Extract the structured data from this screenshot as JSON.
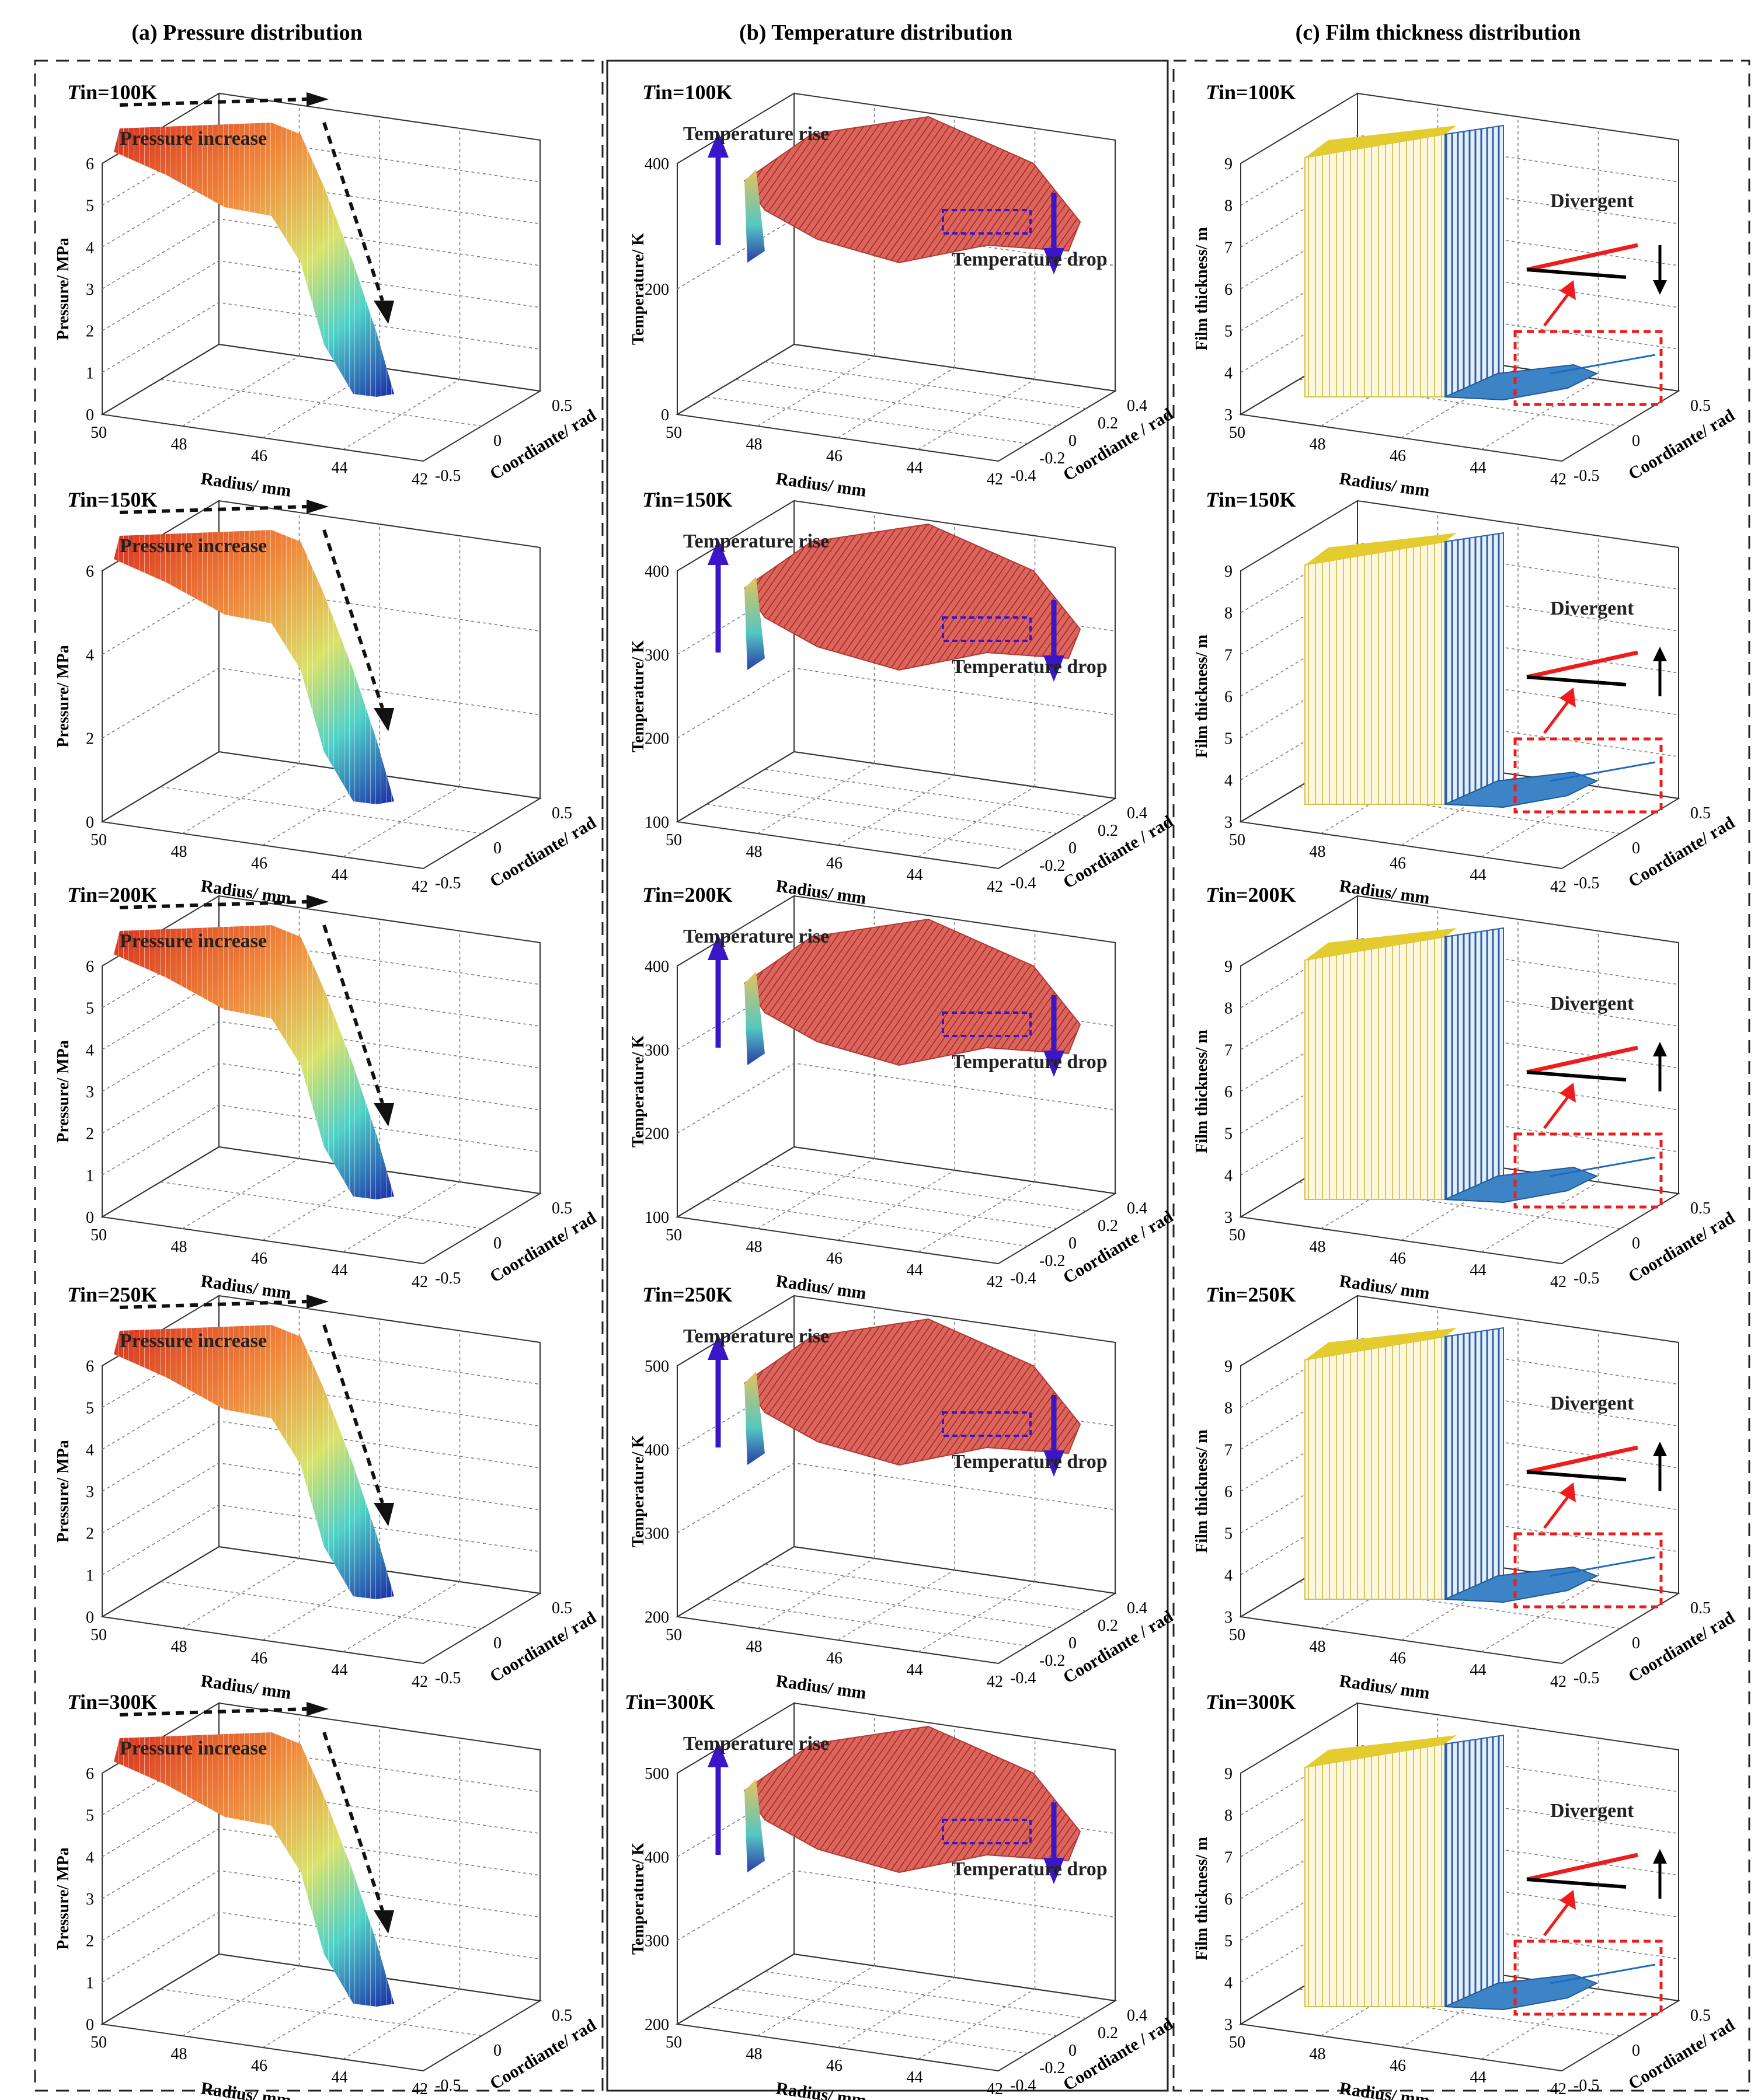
{
  "figure": {
    "column_titles": [
      "(a) Pressure distribution",
      "(b) Temperature distribution",
      "(c) Film thickness distribution"
    ],
    "row_label_prefix": "T",
    "row_label_rest": [
      "in=100K",
      "in=150K",
      "in=200K",
      "in=250K",
      "in=300K"
    ],
    "colors": {
      "frame": "#222222",
      "arrow_dashed": "#111111",
      "arrow_purple": "#3b16c8",
      "box_purple": "#3b16c8",
      "box_red": "#ee1c1c",
      "line_red": "#ee1c1c",
      "line_black": "#000000",
      "surface_red": "#c84848",
      "film_yellow": "#e8d44a",
      "film_blue": "#2f6fbe"
    }
  },
  "chart_data": [
    {
      "type": "surface3d",
      "column": "pressure",
      "title": "(a) Pressure distribution",
      "zlabel": "Pressure/ MPa",
      "xlabel": "Radius/ mm",
      "ylabel": "Coordiante/ rad",
      "x_ticks": [
        "50",
        "48",
        "46",
        "44",
        "42"
      ],
      "y_ticks": [
        "-0.5",
        "0",
        "0.5"
      ],
      "annotation": "Pressure increase",
      "panels": [
        {
          "label": "Tin=100K",
          "z_ticks": [
            "0",
            "1",
            "2",
            "3",
            "4",
            "5",
            "6"
          ],
          "zlim": [
            0,
            6
          ]
        },
        {
          "label": "Tin=150K",
          "z_ticks": [
            "0",
            "2",
            "4",
            "6"
          ],
          "zlim": [
            0,
            6
          ]
        },
        {
          "label": "Tin=200K",
          "z_ticks": [
            "0",
            "1",
            "2",
            "3",
            "4",
            "5",
            "6"
          ],
          "zlim": [
            0,
            6
          ]
        },
        {
          "label": "Tin=250K",
          "z_ticks": [
            "0",
            "1",
            "2",
            "3",
            "4",
            "5",
            "6"
          ],
          "zlim": [
            0,
            6
          ]
        },
        {
          "label": "Tin=300K",
          "z_ticks": [
            "0",
            "1",
            "2",
            "3",
            "4",
            "5",
            "6"
          ],
          "zlim": [
            0,
            6
          ]
        }
      ]
    },
    {
      "type": "surface3d",
      "column": "temperature",
      "title": "(b) Temperature distribution",
      "zlabel": "Temperature/ K",
      "xlabel": "Radius/ mm",
      "ylabel": "Coordiante / rad",
      "x_ticks": [
        "50",
        "48",
        "46",
        "44",
        "42"
      ],
      "y_ticks": [
        "-0.4",
        "-0.2",
        "0",
        "0.2",
        "0.4"
      ],
      "annotation_rise": "Temperature rise",
      "annotation_drop": "Temperature drop",
      "panels": [
        {
          "label": "Tin=100K",
          "z_ticks": [
            "0",
            "200",
            "400"
          ],
          "zlim": [
            0,
            400
          ]
        },
        {
          "label": "Tin=150K",
          "z_ticks": [
            "100",
            "200",
            "300",
            "400"
          ],
          "zlim": [
            100,
            400
          ]
        },
        {
          "label": "Tin=200K",
          "z_ticks": [
            "100",
            "200",
            "300",
            "400"
          ],
          "zlim": [
            100,
            400
          ]
        },
        {
          "label": "Tin=250K",
          "z_ticks": [
            "200",
            "300",
            "400",
            "500"
          ],
          "zlim": [
            200,
            500
          ]
        },
        {
          "label": "Tin=300K",
          "z_ticks": [
            "200",
            "300",
            "400",
            "500"
          ],
          "zlim": [
            200,
            500
          ]
        }
      ]
    },
    {
      "type": "surface3d",
      "column": "film_thickness",
      "title": "(c) Film thickness distribution",
      "zlabel": "Film thickness/ m",
      "xlabel": "Radius/ mm",
      "ylabel": "Coordiante/ rad",
      "x_ticks": [
        "50",
        "48",
        "46",
        "44",
        "42"
      ],
      "y_ticks": [
        "-0.5",
        "0",
        "0.5"
      ],
      "annotation": "Divergent",
      "panels": [
        {
          "label": "Tin=100K",
          "z_ticks": [
            "3",
            "4",
            "5",
            "6",
            "7",
            "8",
            "9"
          ],
          "zlim": [
            3,
            9
          ],
          "arrow_direction": "down"
        },
        {
          "label": "Tin=150K",
          "z_ticks": [
            "3",
            "4",
            "5",
            "6",
            "7",
            "8",
            "9"
          ],
          "zlim": [
            3,
            9
          ],
          "arrow_direction": "up"
        },
        {
          "label": "Tin=200K",
          "z_ticks": [
            "3",
            "4",
            "5",
            "6",
            "7",
            "8",
            "9"
          ],
          "zlim": [
            3,
            9
          ],
          "arrow_direction": "up"
        },
        {
          "label": "Tin=250K",
          "z_ticks": [
            "3",
            "4",
            "5",
            "6",
            "7",
            "8",
            "9"
          ],
          "zlim": [
            3,
            9
          ],
          "arrow_direction": "up"
        },
        {
          "label": "Tin=300K",
          "z_ticks": [
            "3",
            "4",
            "5",
            "6",
            "7",
            "8",
            "9"
          ],
          "zlim": [
            3,
            9
          ],
          "arrow_direction": "up"
        }
      ]
    }
  ]
}
